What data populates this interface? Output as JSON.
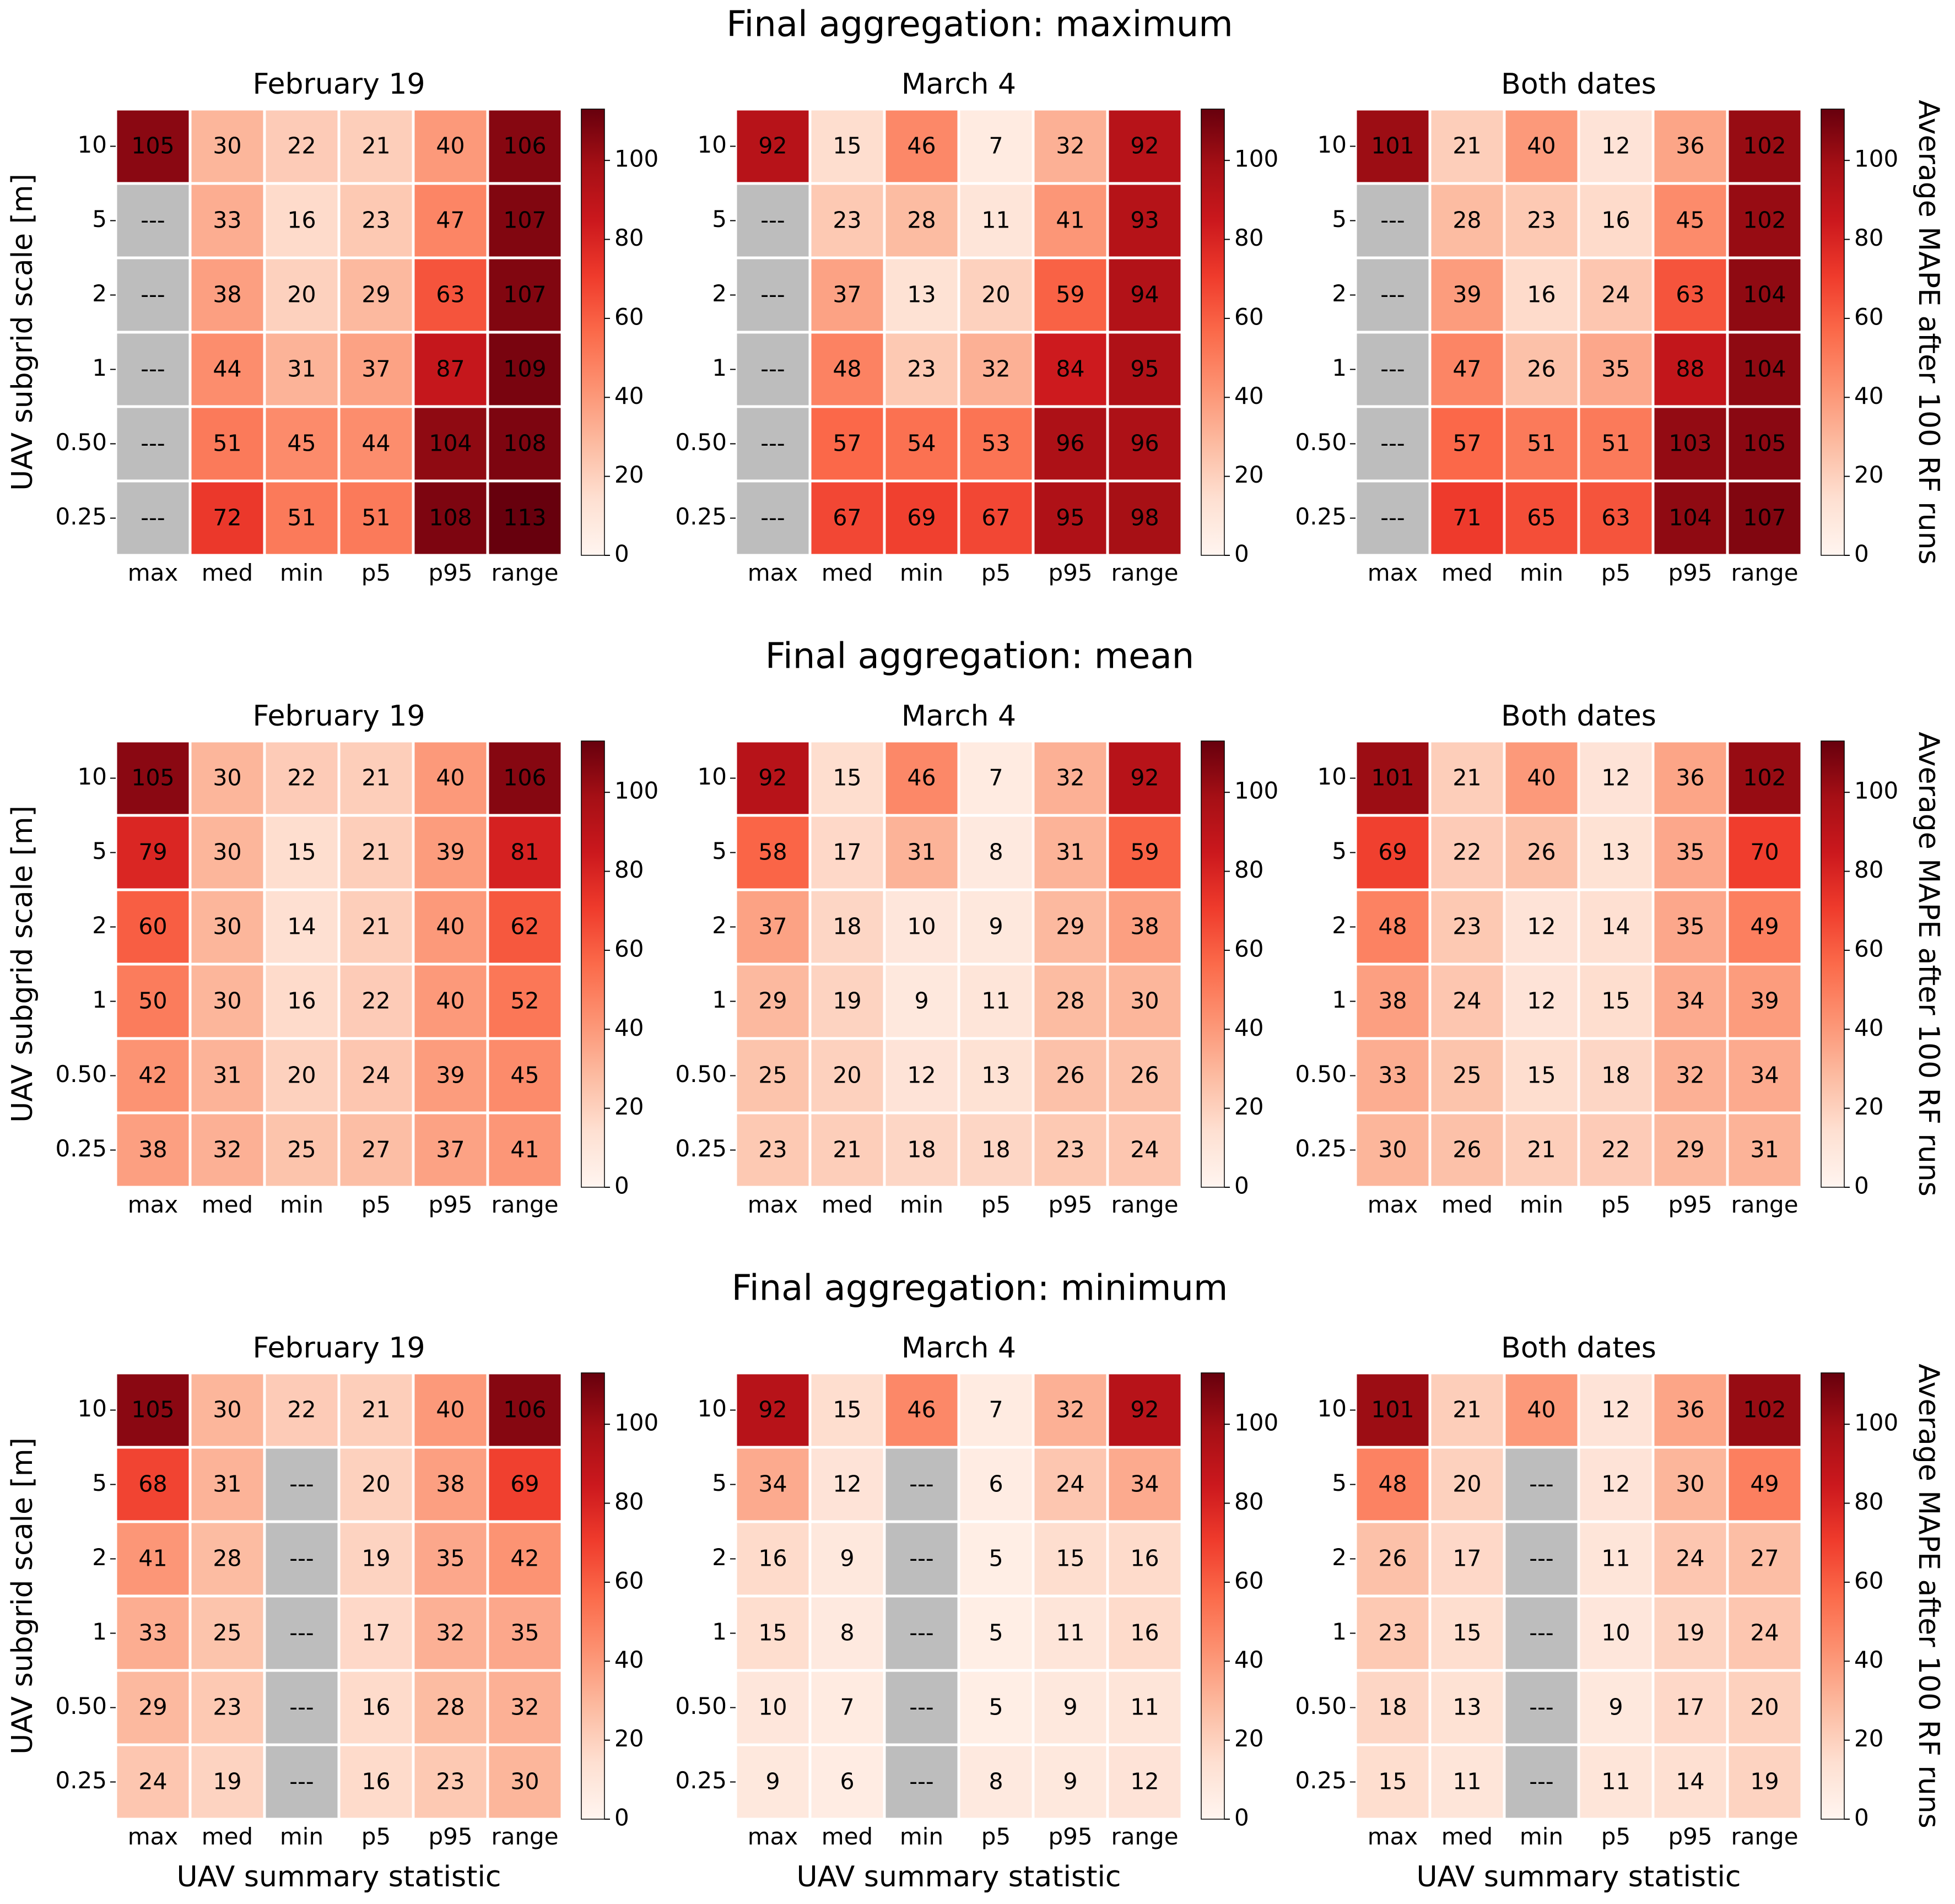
{
  "colorbar": {
    "min": 0,
    "max": 113,
    "ticks": [
      "0",
      "20",
      "40",
      "60",
      "80",
      "100"
    ],
    "tick_values": [
      0,
      20,
      40,
      60,
      80,
      100
    ],
    "label": "Average MAPE after 100 RF runs",
    "missing_color": "#bdbdbd",
    "colormap": "Reds"
  },
  "axes": {
    "xlabel": "UAV summary statistic",
    "ylabel": "UAV subgrid scale [m]"
  },
  "chart_data": [
    {
      "type": "heatmap",
      "row_title": "Final aggregation: maximum",
      "categories": [
        "max",
        "med",
        "min",
        "p5",
        "p95",
        "range"
      ],
      "scales": [
        "10",
        "5",
        "2",
        "1",
        "0.50",
        "0.25"
      ],
      "missing_label": "---",
      "panels": [
        {
          "title": "February 19",
          "values": [
            [
              105,
              30,
              22,
              21,
              40,
              106
            ],
            [
              null,
              33,
              16,
              23,
              47,
              107
            ],
            [
              null,
              38,
              20,
              29,
              63,
              107
            ],
            [
              null,
              44,
              31,
              37,
              87,
              109
            ],
            [
              null,
              51,
              45,
              44,
              104,
              108
            ],
            [
              null,
              72,
              51,
              51,
              108,
              113
            ]
          ]
        },
        {
          "title": "March 4",
          "values": [
            [
              92,
              15,
              46,
              7,
              32,
              92
            ],
            [
              null,
              23,
              28,
              11,
              41,
              93
            ],
            [
              null,
              37,
              13,
              20,
              59,
              94
            ],
            [
              null,
              48,
              23,
              32,
              84,
              95
            ],
            [
              null,
              57,
              54,
              53,
              96,
              96
            ],
            [
              null,
              67,
              69,
              67,
              95,
              98
            ]
          ]
        },
        {
          "title": "Both dates",
          "values": [
            [
              101,
              21,
              40,
              12,
              36,
              102
            ],
            [
              null,
              28,
              23,
              16,
              45,
              102
            ],
            [
              null,
              39,
              16,
              24,
              63,
              104
            ],
            [
              null,
              47,
              26,
              35,
              88,
              104
            ],
            [
              null,
              57,
              51,
              51,
              103,
              105
            ],
            [
              null,
              71,
              65,
              63,
              104,
              107
            ]
          ]
        }
      ]
    },
    {
      "type": "heatmap",
      "row_title": "Final aggregation: mean",
      "categories": [
        "max",
        "med",
        "min",
        "p5",
        "p95",
        "range"
      ],
      "scales": [
        "10",
        "5",
        "2",
        "1",
        "0.50",
        "0.25"
      ],
      "missing_label": "---",
      "panels": [
        {
          "title": "February 19",
          "values": [
            [
              105,
              30,
              22,
              21,
              40,
              106
            ],
            [
              79,
              30,
              15,
              21,
              39,
              81
            ],
            [
              60,
              30,
              14,
              21,
              40,
              62
            ],
            [
              50,
              30,
              16,
              22,
              40,
              52
            ],
            [
              42,
              31,
              20,
              24,
              39,
              45
            ],
            [
              38,
              32,
              25,
              27,
              37,
              41
            ]
          ]
        },
        {
          "title": "March 4",
          "values": [
            [
              92,
              15,
              46,
              7,
              32,
              92
            ],
            [
              58,
              17,
              31,
              8,
              31,
              59
            ],
            [
              37,
              18,
              10,
              9,
              29,
              38
            ],
            [
              29,
              19,
              9,
              11,
              28,
              30
            ],
            [
              25,
              20,
              12,
              13,
              26,
              26
            ],
            [
              23,
              21,
              18,
              18,
              23,
              24
            ]
          ]
        },
        {
          "title": "Both dates",
          "values": [
            [
              101,
              21,
              40,
              12,
              36,
              102
            ],
            [
              69,
              22,
              26,
              13,
              35,
              70
            ],
            [
              48,
              23,
              12,
              14,
              35,
              49
            ],
            [
              38,
              24,
              12,
              15,
              34,
              39
            ],
            [
              33,
              25,
              15,
              18,
              32,
              34
            ],
            [
              30,
              26,
              21,
              22,
              29,
              31
            ]
          ]
        }
      ]
    },
    {
      "type": "heatmap",
      "row_title": "Final aggregation: minimum",
      "categories": [
        "max",
        "med",
        "min",
        "p5",
        "p95",
        "range"
      ],
      "scales": [
        "10",
        "5",
        "2",
        "1",
        "0.50",
        "0.25"
      ],
      "missing_label": "---",
      "panels": [
        {
          "title": "February 19",
          "values": [
            [
              105,
              30,
              22,
              21,
              40,
              106
            ],
            [
              68,
              31,
              null,
              20,
              38,
              69
            ],
            [
              41,
              28,
              null,
              19,
              35,
              42
            ],
            [
              33,
              25,
              null,
              17,
              32,
              35
            ],
            [
              29,
              23,
              null,
              16,
              28,
              32
            ],
            [
              24,
              19,
              null,
              16,
              23,
              30
            ]
          ]
        },
        {
          "title": "March 4",
          "values": [
            [
              92,
              15,
              46,
              7,
              32,
              92
            ],
            [
              34,
              12,
              null,
              6,
              24,
              34
            ],
            [
              16,
              9,
              null,
              5,
              15,
              16
            ],
            [
              15,
              8,
              null,
              5,
              11,
              16
            ],
            [
              10,
              7,
              null,
              5,
              9,
              11
            ],
            [
              9,
              6,
              null,
              8,
              9,
              12
            ]
          ]
        },
        {
          "title": "Both dates",
          "values": [
            [
              101,
              21,
              40,
              12,
              36,
              102
            ],
            [
              48,
              20,
              null,
              12,
              30,
              49
            ],
            [
              26,
              17,
              null,
              11,
              24,
              27
            ],
            [
              23,
              15,
              null,
              10,
              19,
              24
            ],
            [
              18,
              13,
              null,
              9,
              17,
              20
            ],
            [
              15,
              11,
              null,
              11,
              14,
              19
            ]
          ]
        }
      ]
    }
  ]
}
